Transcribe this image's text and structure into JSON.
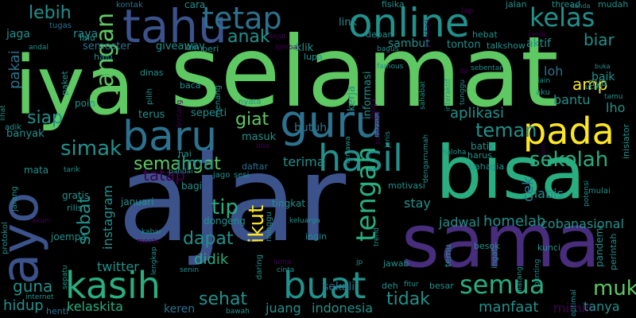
{
  "background": "#000000",
  "palette": {
    "violet": "#440154",
    "indigo": "#472d7b",
    "blue": "#3b528b",
    "slate": "#2c728e",
    "teal": "#21918c",
    "sea": "#28ae80",
    "green": "#5ec962",
    "lime": "#addc30",
    "yellow": "#fde725"
  },
  "words": [
    {
      "text": "ajar",
      "color": "blue"
    },
    {
      "text": "iya",
      "color": "green"
    },
    {
      "text": "selamat",
      "color": "green"
    },
    {
      "text": "bisa",
      "color": "sea"
    },
    {
      "text": "sama",
      "color": "indigo"
    },
    {
      "text": "ayo",
      "color": "blue"
    },
    {
      "text": "online",
      "color": "teal"
    },
    {
      "text": "tahu",
      "color": "blue"
    },
    {
      "text": "guru",
      "color": "slate"
    },
    {
      "text": "pada",
      "color": "yellow"
    },
    {
      "text": "baru",
      "color": "slate"
    },
    {
      "text": "hasil",
      "color": "teal"
    },
    {
      "text": "kasih",
      "color": "sea"
    },
    {
      "text": "buat",
      "color": "teal"
    },
    {
      "text": "tetap",
      "color": "slate"
    },
    {
      "text": "kelas",
      "color": "teal"
    },
    {
      "text": "semua",
      "color": "sea"
    },
    {
      "text": "sekolah",
      "color": "sea"
    },
    {
      "text": "tengah",
      "color": "sea"
    },
    {
      "text": "jangan",
      "color": "green"
    },
    {
      "text": "muka",
      "color": "green"
    },
    {
      "text": "simak",
      "color": "teal"
    },
    {
      "text": "semangat",
      "color": "green"
    },
    {
      "text": "teman",
      "color": "teal"
    },
    {
      "text": "lebih",
      "color": "teal"
    },
    {
      "text": "siap",
      "color": "teal"
    },
    {
      "text": "anak",
      "color": "teal"
    },
    {
      "text": "giat",
      "color": "green"
    },
    {
      "text": "tip",
      "color": "sea"
    },
    {
      "text": "ikut",
      "color": "yellow"
    },
    {
      "text": "dapat",
      "color": "teal"
    },
    {
      "text": "sehat",
      "color": "teal"
    },
    {
      "text": "tidak",
      "color": "teal"
    },
    {
      "text": "sobat",
      "color": "teal"
    },
    {
      "text": "ilmu",
      "color": "teal"
    },
    {
      "text": "tatap",
      "color": "violet"
    },
    {
      "text": "amp",
      "color": "yellow"
    },
    {
      "text": "biar",
      "color": "teal"
    },
    {
      "text": "aplikasi",
      "color": "teal"
    },
    {
      "text": "guna",
      "color": "teal"
    },
    {
      "text": "hidup",
      "color": "teal"
    },
    {
      "text": "didik",
      "color": "sea"
    },
    {
      "text": "cek",
      "color": "slate"
    },
    {
      "text": "homelab",
      "color": "teal"
    },
    {
      "text": "nasional",
      "color": "teal"
    },
    {
      "text": "manfaat",
      "color": "teal"
    },
    {
      "text": "indonesia",
      "color": "teal"
    },
    {
      "text": "kelaskita",
      "color": "sea"
    },
    {
      "text": "instagram",
      "color": "teal"
    },
    {
      "text": "twitter",
      "color": "teal"
    },
    {
      "text": "juang",
      "color": "teal"
    },
    {
      "text": "keren",
      "color": "slate"
    },
    {
      "text": "bantu",
      "color": "teal"
    },
    {
      "text": "lho",
      "color": "teal"
    },
    {
      "text": "coba",
      "color": "teal"
    },
    {
      "text": "jadwal",
      "color": "teal"
    },
    {
      "text": "stay",
      "color": "teal"
    },
    {
      "text": "sekali",
      "color": "slate"
    },
    {
      "text": "mimin",
      "color": "violet"
    },
    {
      "text": "tanya",
      "color": "teal"
    },
    {
      "text": "habis",
      "color": "teal"
    },
    {
      "text": "pakai",
      "color": "slate"
    },
    {
      "text": "baik",
      "color": "teal"
    },
    {
      "text": "loh",
      "color": "slate"
    },
    {
      "text": "terima",
      "color": "teal"
    },
    {
      "text": "jaga",
      "color": "teal"
    },
    {
      "text": "raya",
      "color": "teal"
    },
    {
      "text": "semester",
      "color": "slate"
    },
    {
      "text": "giveaway",
      "color": "teal"
    },
    {
      "text": "sambut",
      "color": "teal"
    },
    {
      "text": "aktif",
      "color": "teal"
    },
    {
      "text": "klik",
      "color": "teal"
    },
    {
      "text": "link",
      "color": "teal"
    },
    {
      "text": "cara",
      "color": "teal"
    },
    {
      "text": "fisika",
      "color": "teal"
    },
    {
      "text": "jalan",
      "color": "teal"
    },
    {
      "text": "thread",
      "color": "teal"
    },
    {
      "text": "mudah",
      "color": "teal"
    },
    {
      "text": "kontak",
      "color": "slate"
    },
    {
      "text": "tugas",
      "color": "slate"
    },
    {
      "text": "depan",
      "color": "teal"
    },
    {
      "text": "hebat",
      "color": "teal"
    },
    {
      "text": "lalu",
      "color": "teal"
    },
    {
      "text": "izin",
      "color": "teal"
    },
    {
      "text": "beri",
      "color": "teal"
    },
    {
      "text": "halo",
      "color": "teal"
    },
    {
      "text": "dinas",
      "color": "teal"
    },
    {
      "text": "baca",
      "color": "teal"
    },
    {
      "text": "tonton",
      "color": "teal"
    },
    {
      "text": "talkshow",
      "color": "teal"
    },
    {
      "text": "lupa",
      "color": "teal"
    },
    {
      "text": "kerja",
      "color": "teal"
    },
    {
      "text": "informasi",
      "color": "teal"
    },
    {
      "text": "butuh",
      "color": "slate"
    },
    {
      "text": "terus",
      "color": "teal"
    },
    {
      "text": "seperti",
      "color": "teal"
    },
    {
      "text": "masuk",
      "color": "teal"
    },
    {
      "text": "banyak",
      "color": "teal"
    },
    {
      "text": "poin",
      "color": "teal"
    },
    {
      "text": "mata",
      "color": "teal"
    },
    {
      "text": "hai",
      "color": "teal"
    },
    {
      "text": "bagi",
      "color": "teal"
    },
    {
      "text": "daftar",
      "color": "slate"
    },
    {
      "text": "tingkat",
      "color": "teal"
    },
    {
      "text": "bahagia",
      "color": "teal"
    },
    {
      "text": "harus",
      "color": "teal"
    },
    {
      "text": "januari",
      "color": "teal"
    },
    {
      "text": "dongeng",
      "color": "teal"
    },
    {
      "text": "batik",
      "color": "teal"
    },
    {
      "text": "gratis",
      "color": "teal"
    },
    {
      "text": "rilis",
      "color": "teal"
    },
    {
      "text": "joempa",
      "color": "teal"
    },
    {
      "text": "ingin",
      "color": "teal"
    },
    {
      "text": "jawab",
      "color": "teal"
    },
    {
      "text": "temu",
      "color": "teal"
    },
    {
      "text": "besok",
      "color": "teal"
    },
    {
      "text": "kunci",
      "color": "teal"
    },
    {
      "text": "deh",
      "color": "teal"
    },
    {
      "text": "besar",
      "color": "teal"
    },
    {
      "text": "henti",
      "color": "slate"
    },
    {
      "text": "internet",
      "color": "teal"
    },
    {
      "text": "bawah",
      "color": "teal"
    },
    {
      "text": "motivasi",
      "color": "teal"
    },
    {
      "text": "keluarga",
      "color": "teal"
    },
    {
      "text": "sesi",
      "color": "teal"
    },
    {
      "text": "jago",
      "color": "teal"
    },
    {
      "text": "pandai",
      "color": "teal"
    },
    {
      "text": "nyata",
      "color": "teal"
    },
    {
      "text": "menang",
      "color": "teal"
    },
    {
      "text": "pilih",
      "color": "teal"
    },
    {
      "text": "paket",
      "color": "teal"
    },
    {
      "text": "andal",
      "color": "teal"
    },
    {
      "text": "bagus",
      "color": "teal"
    },
    {
      "text": "famous",
      "color": "teal"
    },
    {
      "text": "sebentar",
      "color": "teal"
    },
    {
      "text": "lain",
      "color": "teal"
    },
    {
      "text": "ucap",
      "color": "teal"
    },
    {
      "text": "tamu",
      "color": "teal"
    },
    {
      "text": "buka",
      "color": "teal"
    },
    {
      "text": "aku",
      "color": "teal"
    },
    {
      "text": "canda",
      "color": "teal"
    },
    {
      "text": "ceria",
      "color": "violet"
    },
    {
      "text": "penting",
      "color": "teal"
    },
    {
      "text": "matang",
      "color": "teal"
    },
    {
      "text": "ingat",
      "color": "teal"
    },
    {
      "text": "pandemi",
      "color": "teal"
    },
    {
      "text": "perintah",
      "color": "teal"
    },
    {
      "text": "mulai",
      "color": "teal"
    },
    {
      "text": "potensi",
      "color": "teal"
    },
    {
      "text": "join",
      "color": "violet"
    },
    {
      "text": "inisiator",
      "color": "teal"
    },
    {
      "text": "haloha",
      "color": "teal"
    },
    {
      "text": "tertawa",
      "color": "teal"
    },
    {
      "text": "dengarrumah",
      "color": "teal"
    },
    {
      "text": "interaktif",
      "color": "teal"
    },
    {
      "text": "tunggu",
      "color": "teal"
    },
    {
      "text": "sahabat",
      "color": "teal"
    },
    {
      "text": "jenis",
      "color": "teal"
    },
    {
      "text": "trend",
      "color": "teal"
    },
    {
      "text": "fitur",
      "color": "teal"
    },
    {
      "text": "jp",
      "color": "teal"
    },
    {
      "text": "akan",
      "color": "violet"
    },
    {
      "text": "jarang",
      "color": "teal"
    },
    {
      "text": "protokol",
      "color": "teal"
    },
    {
      "text": "tarik",
      "color": "teal"
    },
    {
      "text": "sepatu",
      "color": "teal"
    },
    {
      "text": "daring",
      "color": "teal"
    },
    {
      "text": "cinta",
      "color": "teal"
    },
    {
      "text": "senin",
      "color": "teal"
    },
    {
      "text": "lengkap",
      "color": "teal"
    },
    {
      "text": "minggu",
      "color": "teal"
    },
    {
      "text": "kabar",
      "color": "teal"
    },
    {
      "text": "meets",
      "color": "violet"
    },
    {
      "text": "luma",
      "color": "violet"
    },
    {
      "text": "lihat",
      "color": "teal"
    },
    {
      "text": "adik",
      "color": "teal"
    },
    {
      "text": "bintang",
      "color": "violet"
    },
    {
      "text": "doa",
      "color": "violet"
    },
    {
      "text": "subscribe",
      "color": "violet"
    },
    {
      "text": "moga",
      "color": "violet"
    },
    {
      "text": "lomba",
      "color": "violet"
    },
    {
      "text": "optimal",
      "color": "teal"
    },
    {
      "text": "prestasi",
      "color": "violet"
    },
    {
      "text": "lagi",
      "color": "violet"
    },
    {
      "text": "kejut",
      "color": "violet"
    },
    {
      "text": "isi",
      "color": "violet"
    },
    {
      "text": "nya",
      "color": "teal"
    }
  ]
}
